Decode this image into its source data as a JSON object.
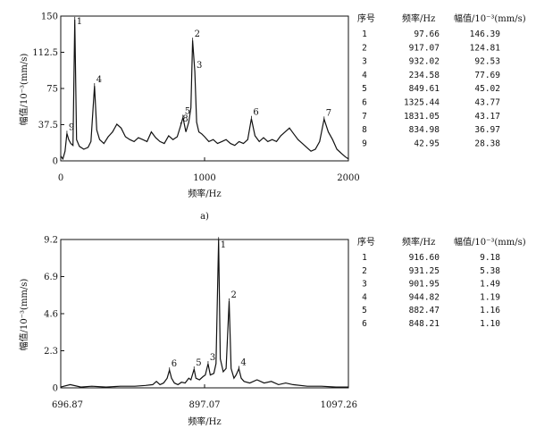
{
  "chart_data": [
    {
      "type": "line",
      "caption": "a)",
      "xlabel": "频率/Hz",
      "ylabel": "幅值/10⁻³(mm/s)",
      "xlim": [
        0,
        2000
      ],
      "ylim": [
        0,
        150
      ],
      "x_ticks": [
        "0",
        "1000",
        "2000"
      ],
      "y_ticks": [
        "0",
        "37.5",
        "75",
        "112.5",
        "150"
      ],
      "series": [
        {
          "x": [
            0,
            15,
            30,
            42.95,
            55,
            70,
            85,
            97.66,
            110,
            130,
            160,
            190,
            210,
            234.58,
            250,
            270,
            300,
            330,
            360,
            390,
            420,
            450,
            480,
            510,
            540,
            570,
            600,
            630,
            660,
            690,
            720,
            750,
            780,
            810,
            834.98,
            849.61,
            870,
            890,
            905,
            917.07,
            932.02,
            945,
            960,
            980,
            1000,
            1030,
            1060,
            1090,
            1120,
            1150,
            1180,
            1210,
            1240,
            1270,
            1300,
            1325.44,
            1350,
            1380,
            1410,
            1440,
            1470,
            1500,
            1530,
            1560,
            1590,
            1620,
            1650,
            1680,
            1710,
            1740,
            1770,
            1800,
            1831.05,
            1860,
            1890,
            1920,
            1950,
            1980,
            2000
          ],
          "y": [
            5,
            2,
            10,
            28.4,
            22,
            18,
            16,
            146.4,
            22,
            15,
            12,
            14,
            20,
            77.7,
            32,
            22,
            18,
            25,
            30,
            38,
            34,
            25,
            22,
            20,
            24,
            22,
            20,
            30,
            24,
            20,
            18,
            26,
            22,
            25,
            37,
            45,
            30,
            40,
            55,
            124.8,
            92.5,
            40,
            30,
            28,
            25,
            20,
            22,
            18,
            20,
            22,
            18,
            16,
            20,
            18,
            22,
            43.8,
            26,
            20,
            24,
            20,
            22,
            20,
            26,
            30,
            34,
            28,
            22,
            18,
            14,
            10,
            12,
            20,
            43.2,
            30,
            22,
            12,
            8,
            4,
            2
          ]
        }
      ],
      "peak_labels": [
        {
          "label": "1",
          "x": 97.66
        },
        {
          "label": "2",
          "x": 917.07
        },
        {
          "label": "3",
          "x": 932.02
        },
        {
          "label": "4",
          "x": 234.58
        },
        {
          "label": "5",
          "x": 849.61
        },
        {
          "label": "6",
          "x": 1325.44
        },
        {
          "label": "7",
          "x": 1831.05
        },
        {
          "label": "8",
          "x": 834.98
        },
        {
          "label": "9",
          "x": 42.95
        }
      ],
      "table": {
        "headers": [
          "序号",
          "频率/Hz",
          "幅值/10⁻³(mm/s)"
        ],
        "rows": [
          [
            "1",
            "97.66",
            "146.39"
          ],
          [
            "2",
            "917.07",
            "124.81"
          ],
          [
            "3",
            "932.02",
            "92.53"
          ],
          [
            "4",
            "234.58",
            "77.69"
          ],
          [
            "5",
            "849.61",
            "45.02"
          ],
          [
            "6",
            "1325.44",
            "43.77"
          ],
          [
            "7",
            "1831.05",
            "43.17"
          ],
          [
            "8",
            "834.98",
            "36.97"
          ],
          [
            "9",
            "42.95",
            "28.38"
          ]
        ]
      }
    },
    {
      "type": "line",
      "xlabel": "频率/Hz",
      "ylabel": "幅值/10⁻³(mm/s)",
      "xlim": [
        696.87,
        1097.26
      ],
      "ylim": [
        0,
        9.2
      ],
      "x_ticks": [
        "696.87",
        "897.07",
        "1097.26"
      ],
      "y_ticks": [
        "0",
        "2.3",
        "4.6",
        "6.9",
        "9.2"
      ],
      "series": [
        {
          "x": [
            696.87,
            710,
            725,
            740,
            760,
            780,
            800,
            815,
            825,
            830,
            835,
            840,
            845,
            848.21,
            851,
            855,
            860,
            865,
            870,
            875,
            878,
            882.47,
            885,
            890,
            895,
            898,
            901.95,
            905,
            910,
            913,
            916.6,
            919,
            923,
            927,
            931.25,
            934,
            938,
            941,
            944.82,
            948,
            952,
            960,
            970,
            980,
            990,
            1000,
            1010,
            1020,
            1040,
            1060,
            1080,
            1097.26
          ],
          "y": [
            0.05,
            0.2,
            0.05,
            0.1,
            0.05,
            0.1,
            0.1,
            0.15,
            0.2,
            0.4,
            0.2,
            0.3,
            0.6,
            1.1,
            0.6,
            0.3,
            0.2,
            0.35,
            0.3,
            0.6,
            0.5,
            1.16,
            0.6,
            0.5,
            0.7,
            0.8,
            1.49,
            0.8,
            0.9,
            1.5,
            9.18,
            1.8,
            1.0,
            1.2,
            5.38,
            1.2,
            0.6,
            0.8,
            1.19,
            0.6,
            0.4,
            0.3,
            0.5,
            0.3,
            0.4,
            0.2,
            0.3,
            0.2,
            0.1,
            0.1,
            0.05,
            0.05
          ]
        }
      ],
      "peak_labels": [
        {
          "label": "1",
          "x": 916.6
        },
        {
          "label": "2",
          "x": 931.25
        },
        {
          "label": "3",
          "x": 901.95
        },
        {
          "label": "4",
          "x": 944.82
        },
        {
          "label": "5",
          "x": 882.47
        },
        {
          "label": "6",
          "x": 848.21
        }
      ],
      "table": {
        "headers": [
          "序号",
          "频率/Hz",
          "幅值/10⁻³(mm/s)"
        ],
        "rows": [
          [
            "1",
            "916.60",
            "9.18"
          ],
          [
            "2",
            "931.25",
            "5.38"
          ],
          [
            "3",
            "901.95",
            "1.49"
          ],
          [
            "4",
            "944.82",
            "1.19"
          ],
          [
            "5",
            "882.47",
            "1.16"
          ],
          [
            "6",
            "848.21",
            "1.10"
          ]
        ]
      }
    }
  ]
}
